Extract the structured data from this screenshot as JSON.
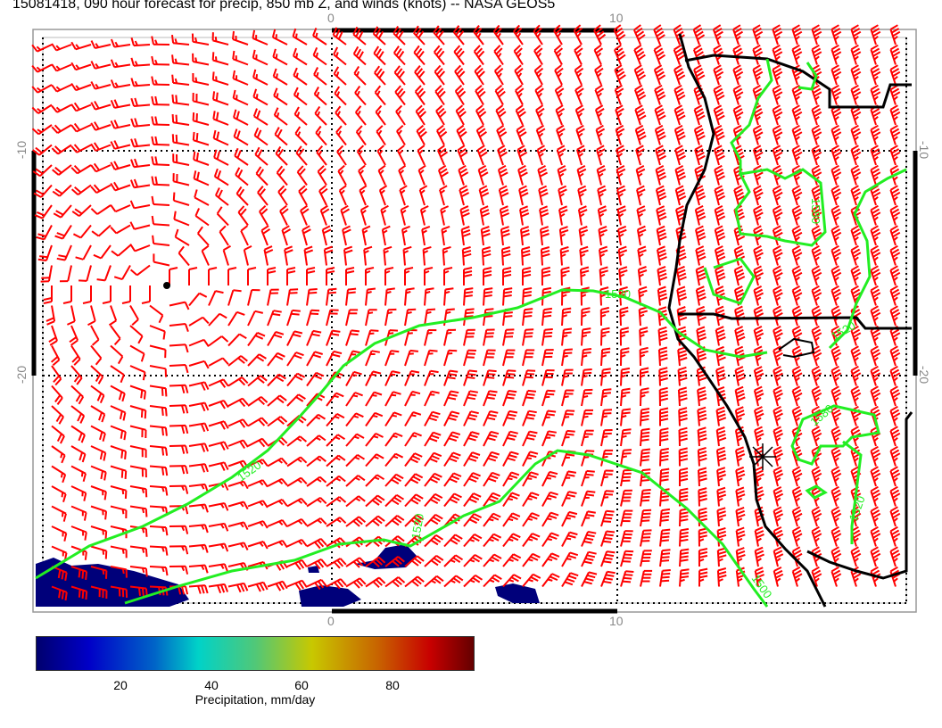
{
  "title": "15081418, 090 hour forecast for precip, 850 mb Z, and winds (knots) -- NASA GEOS5",
  "map": {
    "lon_ticks": [
      "0",
      "10"
    ],
    "lat_ticks": [
      "-10",
      "-20"
    ],
    "lon_range": [
      -10,
      20
    ],
    "lat_range": [
      -30,
      -5
    ],
    "grid": true,
    "contour_color": "#00ee00",
    "wind_barb_color": "#ff0000",
    "coastline_color": "#000000",
    "contour_labels": [
      "1520",
      "1520",
      "1520",
      "1520",
      "1580",
      "1580",
      "1520",
      "1500"
    ]
  },
  "colorbar": {
    "ticks": [
      "20",
      "40",
      "60",
      "80"
    ],
    "label": "Precipitation, mm/day",
    "range": [
      1,
      98
    ],
    "colors": [
      "#00006e",
      "#0000c8",
      "#00d2c8",
      "#c8c800",
      "#c80000",
      "#640000"
    ]
  }
}
